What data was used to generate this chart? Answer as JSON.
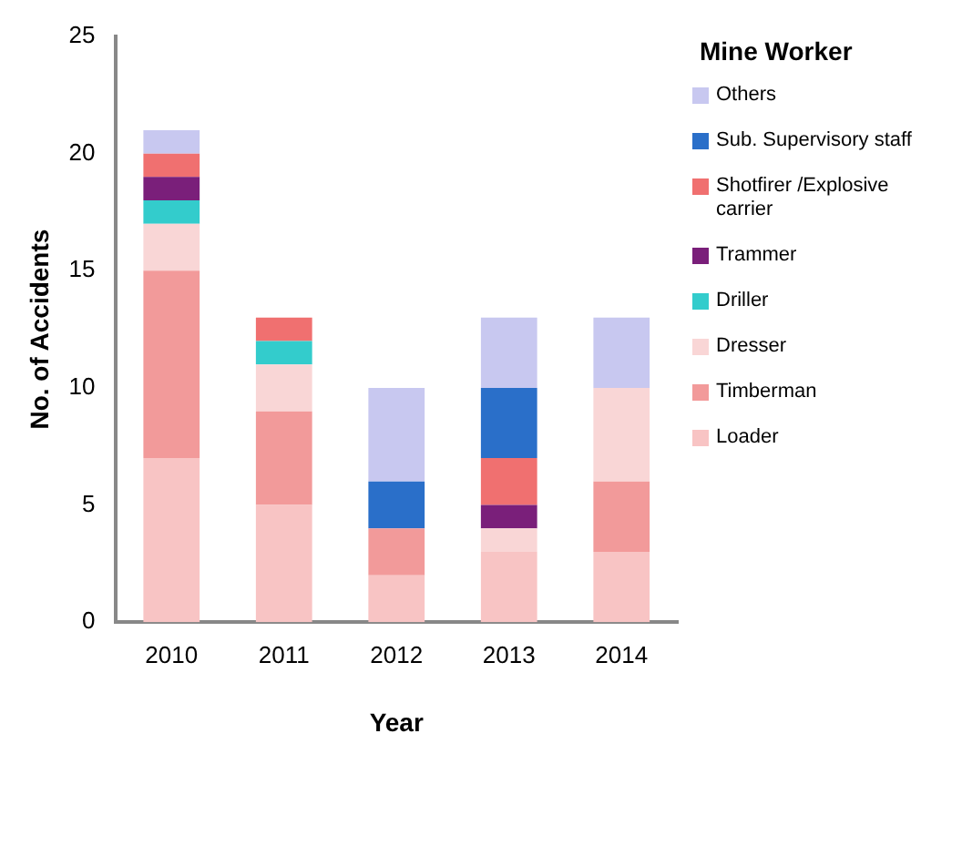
{
  "chart_data": {
    "type": "bar",
    "stacked": true,
    "xlabel": "Year",
    "ylabel": "No. of Accidents",
    "legend_title": "Mine Worker",
    "legend": "right",
    "grid": false,
    "categories": [
      "2010",
      "2011",
      "2012",
      "2013",
      "2014"
    ],
    "ylim": [
      0,
      25
    ],
    "yticks": [
      0,
      5,
      10,
      15,
      20,
      25
    ],
    "series": [
      {
        "name": "Loader",
        "color": "#f8c4c4",
        "values": [
          7,
          5,
          2,
          3,
          3
        ]
      },
      {
        "name": "Timberman",
        "color": "#f29a9a",
        "values": [
          8,
          4,
          2,
          0,
          3
        ]
      },
      {
        "name": "Dresser",
        "color": "#f9d6d6",
        "values": [
          2,
          2,
          0,
          1,
          4
        ]
      },
      {
        "name": "Driller",
        "color": "#33cccc",
        "values": [
          1,
          1,
          0,
          0,
          0
        ]
      },
      {
        "name": "Trammer",
        "color": "#7a1f7a",
        "values": [
          1,
          0,
          0,
          1,
          0
        ]
      },
      {
        "name": "Shotfirer /Explosive carrier",
        "color": "#f07070",
        "values": [
          1,
          1,
          0,
          2,
          0
        ]
      },
      {
        "name": "Sub. Supervisory staff",
        "color": "#2a6fc9",
        "values": [
          0,
          0,
          2,
          3,
          0
        ]
      },
      {
        "name": "Others",
        "color": "#c8c8f0",
        "values": [
          1,
          0,
          4,
          3,
          3
        ]
      }
    ]
  }
}
